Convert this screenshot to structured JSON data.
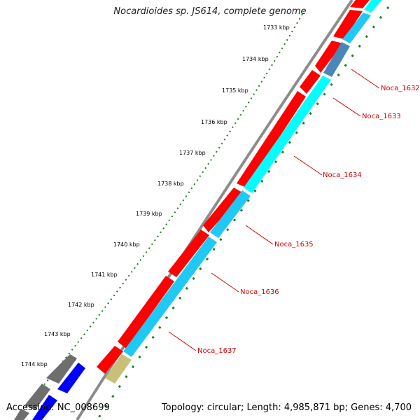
{
  "title": "Nocardioides sp. JS614, complete genome",
  "accession": "Accession: NC_008699",
  "summary": "Topology: circular; Length: 4,985,871 bp; Genes: 4,700",
  "colors": {
    "backbone": "#8c8c8c",
    "forward_gene": "#ff0000",
    "reverse_cds": "#00ffff",
    "reverse_cds_alt": "#1fc8f5",
    "reverse_cds_dark": "#4a86b8",
    "reverse_cds_tan": "#c8c078",
    "other_gray": "#6e6e6e",
    "other_blue": "#0000ff",
    "tick_green": "#1e7d1e",
    "label_red": "#d40000"
  },
  "scale_ticks": [
    "1733 kbp",
    "1734 kbp",
    "1735 kbp",
    "1736 kbp",
    "1737 kbp",
    "1738 kbp",
    "1739 kbp",
    "1740 kbp",
    "1741 kbp",
    "1742 kbp",
    "1743 kbp",
    "1744 kbp"
  ],
  "gene_labels": [
    "Noca_1632",
    "Noca_1633",
    "Noca_1634",
    "Noca_1635",
    "Noca_1636",
    "Noca_1637"
  ]
}
